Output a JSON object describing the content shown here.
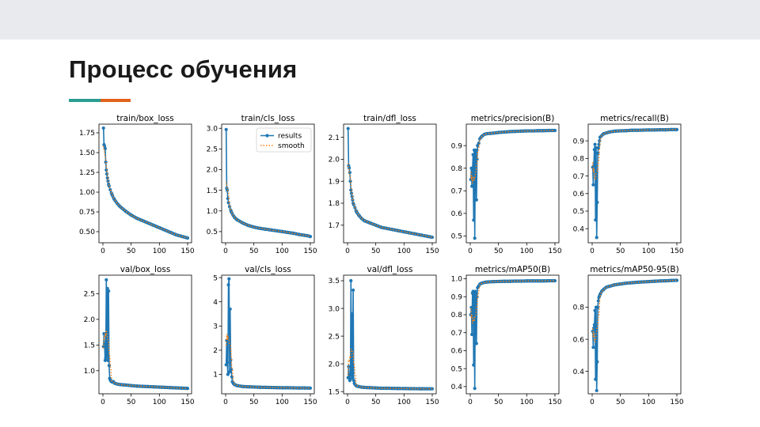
{
  "slide": {
    "title": "Процесс обучения",
    "accent_colors": [
      "#2a9d8f",
      "#e2621b"
    ]
  },
  "legend": {
    "results": "results",
    "smooth": "smooth"
  },
  "series_colors": {
    "results": "#1f77b4",
    "smooth": "#ff7f0e"
  },
  "chart_data": [
    {
      "type": "line",
      "title": "train/box_loss",
      "xlim": [
        -7,
        157
      ],
      "ylim": [
        0.36,
        1.86
      ],
      "xticks": [
        0,
        50,
        100,
        150
      ],
      "yticks": [
        0.5,
        0.75,
        1.0,
        1.25,
        1.5,
        1.75
      ],
      "yticklabels": [
        "0.50",
        "0.75",
        "1.00",
        "1.25",
        "1.50",
        "1.75"
      ],
      "shape": "decay",
      "points": [
        [
          1,
          1.81
        ],
        [
          2,
          1.6
        ],
        [
          3,
          1.58
        ],
        [
          4,
          1.55
        ],
        [
          5,
          1.38
        ],
        [
          6,
          1.28
        ],
        [
          8,
          1.18
        ],
        [
          10,
          1.1
        ],
        [
          13,
          1.03
        ],
        [
          16,
          0.97
        ],
        [
          20,
          0.91
        ],
        [
          25,
          0.86
        ],
        [
          30,
          0.82
        ],
        [
          40,
          0.76
        ],
        [
          50,
          0.71
        ],
        [
          60,
          0.67
        ],
        [
          70,
          0.64
        ],
        [
          80,
          0.61
        ],
        [
          90,
          0.58
        ],
        [
          100,
          0.55
        ],
        [
          110,
          0.52
        ],
        [
          120,
          0.49
        ],
        [
          130,
          0.46
        ],
        [
          140,
          0.44
        ],
        [
          145,
          0.43
        ],
        [
          150,
          0.42
        ]
      ]
    },
    {
      "type": "line",
      "title": "train/cls_loss",
      "xlim": [
        -7,
        157
      ],
      "ylim": [
        0.23,
        3.1
      ],
      "xticks": [
        0,
        50,
        100,
        150
      ],
      "yticks": [
        0.5,
        1.0,
        1.5,
        2.0,
        2.5,
        3.0
      ],
      "yticklabels": [
        "0.5",
        "1.0",
        "1.5",
        "2.0",
        "2.5",
        "3.0"
      ],
      "shape": "decay",
      "legend": "top-right",
      "points": [
        [
          1,
          2.97
        ],
        [
          2,
          1.55
        ],
        [
          3,
          1.5
        ],
        [
          4,
          1.3
        ],
        [
          5,
          1.2
        ],
        [
          7,
          1.1
        ],
        [
          10,
          0.98
        ],
        [
          13,
          0.9
        ],
        [
          16,
          0.84
        ],
        [
          20,
          0.79
        ],
        [
          25,
          0.75
        ],
        [
          30,
          0.71
        ],
        [
          40,
          0.65
        ],
        [
          50,
          0.61
        ],
        [
          60,
          0.58
        ],
        [
          70,
          0.56
        ],
        [
          80,
          0.54
        ],
        [
          90,
          0.52
        ],
        [
          100,
          0.5
        ],
        [
          110,
          0.48
        ],
        [
          120,
          0.46
        ],
        [
          130,
          0.43
        ],
        [
          140,
          0.41
        ],
        [
          145,
          0.4
        ],
        [
          150,
          0.38
        ]
      ]
    },
    {
      "type": "line",
      "title": "train/dfl_loss",
      "xlim": [
        -7,
        157
      ],
      "ylim": [
        1.62,
        2.16
      ],
      "xticks": [
        0,
        50,
        100,
        150
      ],
      "yticks": [
        1.7,
        1.8,
        1.9,
        2.0,
        2.1
      ],
      "yticklabels": [
        "1.7",
        "1.8",
        "1.9",
        "2.0",
        "2.1"
      ],
      "shape": "decay",
      "points": [
        [
          1,
          2.14
        ],
        [
          2,
          1.97
        ],
        [
          3,
          1.96
        ],
        [
          4,
          1.94
        ],
        [
          5,
          1.9
        ],
        [
          6,
          1.86
        ],
        [
          8,
          1.83
        ],
        [
          10,
          1.8
        ],
        [
          13,
          1.78
        ],
        [
          16,
          1.76
        ],
        [
          20,
          1.745
        ],
        [
          25,
          1.73
        ],
        [
          30,
          1.72
        ],
        [
          40,
          1.71
        ],
        [
          50,
          1.7
        ],
        [
          60,
          1.69
        ],
        [
          70,
          1.685
        ],
        [
          80,
          1.68
        ],
        [
          90,
          1.675
        ],
        [
          100,
          1.67
        ],
        [
          110,
          1.665
        ],
        [
          120,
          1.66
        ],
        [
          130,
          1.655
        ],
        [
          140,
          1.65
        ],
        [
          150,
          1.645
        ]
      ]
    },
    {
      "type": "line",
      "title": "metrics/precision(B)",
      "xlim": [
        -7,
        157
      ],
      "ylim": [
        0.47,
        0.995
      ],
      "xticks": [
        0,
        50,
        100,
        150
      ],
      "yticks": [
        0.5,
        0.6,
        0.7,
        0.8,
        0.9
      ],
      "yticklabels": [
        "0.5",
        "0.6",
        "0.7",
        "0.8",
        "0.9"
      ],
      "shape": "rise",
      "points": [
        [
          1,
          0.75
        ],
        [
          2,
          0.8
        ],
        [
          3,
          0.72
        ],
        [
          4,
          0.79
        ],
        [
          5,
          0.86
        ],
        [
          6,
          0.57
        ],
        [
          7,
          0.88
        ],
        [
          8,
          0.49
        ],
        [
          9,
          0.87
        ],
        [
          10,
          0.88
        ],
        [
          11,
          0.66
        ],
        [
          12,
          0.84
        ],
        [
          13,
          0.9
        ],
        [
          15,
          0.91
        ],
        [
          17,
          0.93
        ],
        [
          20,
          0.94
        ],
        [
          25,
          0.95
        ],
        [
          30,
          0.953
        ],
        [
          40,
          0.955
        ],
        [
          50,
          0.958
        ],
        [
          60,
          0.96
        ],
        [
          70,
          0.962
        ],
        [
          80,
          0.963
        ],
        [
          90,
          0.964
        ],
        [
          100,
          0.965
        ],
        [
          110,
          0.965
        ],
        [
          120,
          0.966
        ],
        [
          130,
          0.966
        ],
        [
          140,
          0.967
        ],
        [
          150,
          0.967
        ]
      ]
    },
    {
      "type": "line",
      "title": "metrics/recall(B)",
      "xlim": [
        -7,
        157
      ],
      "ylim": [
        0.32,
        0.995
      ],
      "xticks": [
        0,
        50,
        100,
        150
      ],
      "yticks": [
        0.4,
        0.5,
        0.6,
        0.7,
        0.8,
        0.9
      ],
      "yticklabels": [
        "0.4",
        "0.5",
        "0.6",
        "0.7",
        "0.8",
        "0.9"
      ],
      "shape": "rise",
      "points": [
        [
          1,
          0.75
        ],
        [
          2,
          0.65
        ],
        [
          3,
          0.76
        ],
        [
          4,
          0.85
        ],
        [
          5,
          0.88
        ],
        [
          6,
          0.45
        ],
        [
          7,
          0.86
        ],
        [
          8,
          0.35
        ],
        [
          9,
          0.55
        ],
        [
          10,
          0.83
        ],
        [
          11,
          0.86
        ],
        [
          12,
          0.88
        ],
        [
          14,
          0.92
        ],
        [
          17,
          0.93
        ],
        [
          20,
          0.94
        ],
        [
          25,
          0.945
        ],
        [
          30,
          0.95
        ],
        [
          40,
          0.955
        ],
        [
          50,
          0.957
        ],
        [
          60,
          0.958
        ],
        [
          70,
          0.96
        ],
        [
          80,
          0.96
        ],
        [
          90,
          0.961
        ],
        [
          100,
          0.962
        ],
        [
          110,
          0.962
        ],
        [
          120,
          0.963
        ],
        [
          130,
          0.963
        ],
        [
          140,
          0.964
        ],
        [
          150,
          0.964
        ]
      ]
    },
    {
      "type": "line",
      "title": "val/box_loss",
      "xlim": [
        -7,
        157
      ],
      "ylim": [
        0.55,
        2.86
      ],
      "xticks": [
        0,
        50,
        100,
        150
      ],
      "yticks": [
        1.0,
        1.5,
        2.0,
        2.5
      ],
      "yticklabels": [
        "1.0",
        "1.5",
        "2.0",
        "2.5"
      ],
      "shape": "decay",
      "points": [
        [
          1,
          1.47
        ],
        [
          2,
          1.72
        ],
        [
          3,
          1.52
        ],
        [
          4,
          1.2
        ],
        [
          5,
          1.25
        ],
        [
          6,
          2.77
        ],
        [
          7,
          1.3
        ],
        [
          8,
          2.6
        ],
        [
          9,
          1.2
        ],
        [
          10,
          2.55
        ],
        [
          11,
          1.1
        ],
        [
          12,
          0.85
        ],
        [
          14,
          0.8
        ],
        [
          16,
          0.78
        ],
        [
          18,
          0.79
        ],
        [
          20,
          0.76
        ],
        [
          25,
          0.74
        ],
        [
          30,
          0.73
        ],
        [
          40,
          0.72
        ],
        [
          50,
          0.71
        ],
        [
          60,
          0.7
        ],
        [
          70,
          0.695
        ],
        [
          80,
          0.69
        ],
        [
          90,
          0.685
        ],
        [
          100,
          0.68
        ],
        [
          110,
          0.675
        ],
        [
          120,
          0.67
        ],
        [
          130,
          0.665
        ],
        [
          140,
          0.66
        ],
        [
          150,
          0.655
        ]
      ]
    },
    {
      "type": "line",
      "title": "val/cls_loss",
      "xlim": [
        -7,
        157
      ],
      "ylim": [
        0.2,
        5.1
      ],
      "xticks": [
        0,
        50,
        100,
        150
      ],
      "yticks": [
        1,
        2,
        3,
        4,
        5
      ],
      "yticklabels": [
        "1",
        "2",
        "3",
        "4",
        "5"
      ],
      "shape": "decay",
      "points": [
        [
          1,
          1.4
        ],
        [
          2,
          2.4
        ],
        [
          3,
          1.5
        ],
        [
          4,
          1.0
        ],
        [
          5,
          4.7
        ],
        [
          6,
          4.95
        ],
        [
          7,
          1.1
        ],
        [
          8,
          3.7
        ],
        [
          9,
          1.6
        ],
        [
          10,
          1.2
        ],
        [
          11,
          0.9
        ],
        [
          12,
          0.7
        ],
        [
          14,
          0.62
        ],
        [
          16,
          0.58
        ],
        [
          20,
          0.54
        ],
        [
          25,
          0.52
        ],
        [
          30,
          0.5
        ],
        [
          40,
          0.49
        ],
        [
          50,
          0.48
        ],
        [
          60,
          0.47
        ],
        [
          70,
          0.465
        ],
        [
          80,
          0.46
        ],
        [
          90,
          0.455
        ],
        [
          100,
          0.45
        ],
        [
          110,
          0.45
        ],
        [
          120,
          0.445
        ],
        [
          130,
          0.44
        ],
        [
          140,
          0.44
        ],
        [
          150,
          0.435
        ]
      ]
    },
    {
      "type": "line",
      "title": "val/dfl_loss",
      "xlim": [
        -7,
        157
      ],
      "ylim": [
        1.46,
        3.6
      ],
      "xticks": [
        0,
        50,
        100,
        150
      ],
      "yticks": [
        1.5,
        2.0,
        2.5,
        3.0,
        3.5
      ],
      "yticklabels": [
        "1.5",
        "2.0",
        "2.5",
        "3.0",
        "3.5"
      ],
      "shape": "decay",
      "points": [
        [
          1,
          1.75
        ],
        [
          2,
          1.95
        ],
        [
          3,
          1.8
        ],
        [
          4,
          1.7
        ],
        [
          5,
          1.72
        ],
        [
          6,
          3.5
        ],
        [
          7,
          1.8
        ],
        [
          8,
          2.9
        ],
        [
          9,
          1.75
        ],
        [
          10,
          3.33
        ],
        [
          11,
          1.7
        ],
        [
          12,
          1.65
        ],
        [
          14,
          1.62
        ],
        [
          16,
          1.6
        ],
        [
          20,
          1.59
        ],
        [
          25,
          1.58
        ],
        [
          30,
          1.575
        ],
        [
          40,
          1.57
        ],
        [
          50,
          1.565
        ],
        [
          60,
          1.56
        ],
        [
          70,
          1.56
        ],
        [
          80,
          1.558
        ],
        [
          90,
          1.556
        ],
        [
          100,
          1.555
        ],
        [
          110,
          1.553
        ],
        [
          120,
          1.552
        ],
        [
          130,
          1.551
        ],
        [
          140,
          1.55
        ],
        [
          150,
          1.55
        ]
      ]
    },
    {
      "type": "line",
      "title": "metrics/mAP50(B)",
      "xlim": [
        -7,
        157
      ],
      "ylim": [
        0.36,
        1.02
      ],
      "xticks": [
        0,
        50,
        100,
        150
      ],
      "yticks": [
        0.4,
        0.5,
        0.6,
        0.7,
        0.8,
        0.9,
        1.0
      ],
      "yticklabels": [
        "0.4",
        "0.5",
        "0.6",
        "0.7",
        "0.8",
        "0.9",
        "1.0"
      ],
      "shape": "rise",
      "points": [
        [
          1,
          0.8
        ],
        [
          2,
          0.84
        ],
        [
          3,
          0.69
        ],
        [
          4,
          0.92
        ],
        [
          5,
          0.93
        ],
        [
          6,
          0.52
        ],
        [
          7,
          0.92
        ],
        [
          8,
          0.39
        ],
        [
          9,
          0.93
        ],
        [
          10,
          0.92
        ],
        [
          11,
          0.64
        ],
        [
          12,
          0.9
        ],
        [
          13,
          0.95
        ],
        [
          15,
          0.96
        ],
        [
          17,
          0.97
        ],
        [
          20,
          0.975
        ],
        [
          25,
          0.98
        ],
        [
          30,
          0.982
        ],
        [
          40,
          0.984
        ],
        [
          50,
          0.985
        ],
        [
          60,
          0.986
        ],
        [
          70,
          0.986
        ],
        [
          80,
          0.987
        ],
        [
          90,
          0.987
        ],
        [
          100,
          0.988
        ],
        [
          110,
          0.988
        ],
        [
          120,
          0.988
        ],
        [
          130,
          0.988
        ],
        [
          140,
          0.989
        ],
        [
          150,
          0.989
        ]
      ]
    },
    {
      "type": "line",
      "title": "metrics/mAP50-95(B)",
      "xlim": [
        -7,
        157
      ],
      "ylim": [
        0.26,
        1.0
      ],
      "xticks": [
        0,
        50,
        100,
        150
      ],
      "yticks": [
        0.4,
        0.6,
        0.8
      ],
      "yticklabels": [
        "0.4",
        "0.6",
        "0.8"
      ],
      "shape": "rise",
      "points": [
        [
          1,
          0.65
        ],
        [
          2,
          0.55
        ],
        [
          3,
          0.67
        ],
        [
          4,
          0.69
        ],
        [
          5,
          0.78
        ],
        [
          6,
          0.35
        ],
        [
          7,
          0.8
        ],
        [
          8,
          0.28
        ],
        [
          9,
          0.46
        ],
        [
          10,
          0.8
        ],
        [
          11,
          0.84
        ],
        [
          12,
          0.86
        ],
        [
          14,
          0.88
        ],
        [
          17,
          0.9
        ],
        [
          20,
          0.91
        ],
        [
          25,
          0.925
        ],
        [
          30,
          0.93
        ],
        [
          40,
          0.94
        ],
        [
          50,
          0.945
        ],
        [
          60,
          0.95
        ],
        [
          70,
          0.953
        ],
        [
          80,
          0.956
        ],
        [
          90,
          0.958
        ],
        [
          100,
          0.96
        ],
        [
          110,
          0.962
        ],
        [
          120,
          0.964
        ],
        [
          130,
          0.965
        ],
        [
          140,
          0.967
        ],
        [
          150,
          0.968
        ]
      ]
    }
  ]
}
